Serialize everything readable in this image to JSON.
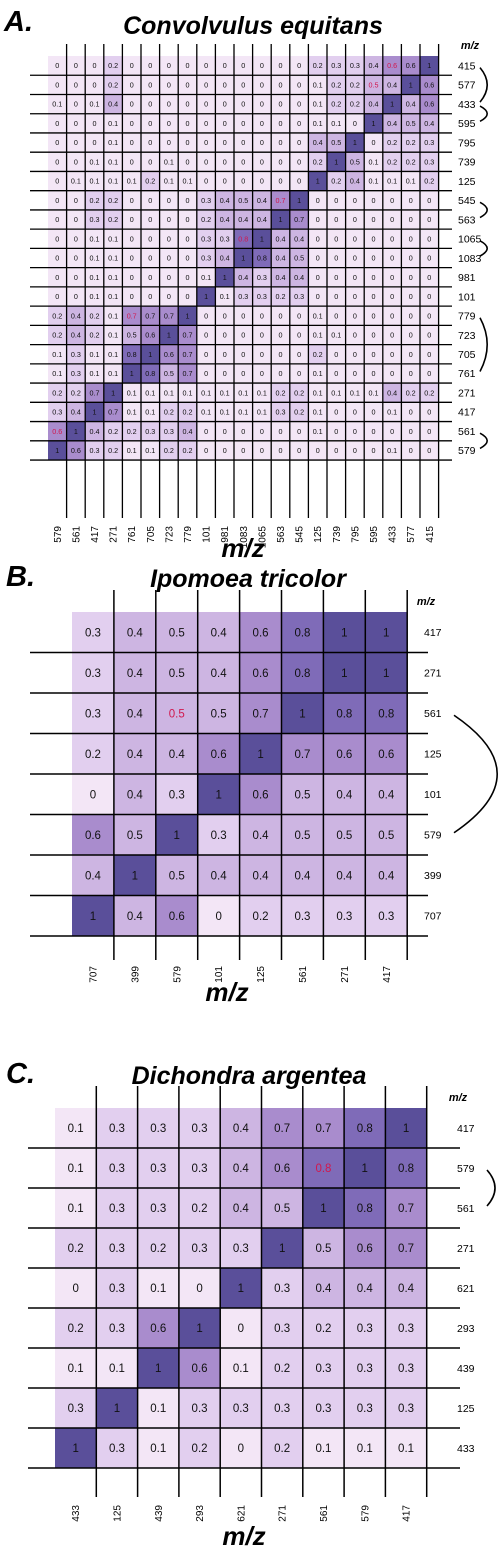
{
  "colors": {
    "scale": [
      "#f3e6f6",
      "#e2cfef",
      "#cdb5e2",
      "#a98ccd",
      "#7f6bb8",
      "#5a4f9a"
    ],
    "highlight_text": "#d1184e",
    "normal_text": "#111111",
    "grid": "#000000"
  },
  "chart_data": [
    {
      "type": "heatmap",
      "panel": "A.",
      "title": "Convolvulus equitans",
      "xlabel": "m/z",
      "row_header": "m/z",
      "x_labels": [
        "579",
        "561",
        "417",
        "271",
        "761",
        "705",
        "723",
        "779",
        "101",
        "981",
        "1083",
        "1065",
        "563",
        "545",
        "125",
        "739",
        "795",
        "595",
        "433",
        "577",
        "415"
      ],
      "y_labels": [
        "415",
        "577",
        "433",
        "595",
        "795",
        "739",
        "125",
        "545",
        "563",
        "1065",
        "1083",
        "981",
        "101",
        "779",
        "723",
        "705",
        "761",
        "271",
        "417",
        "561",
        "579"
      ],
      "brackets": [
        [
          0,
          2
        ],
        [
          2,
          3
        ],
        [
          7,
          8
        ],
        [
          9,
          10
        ],
        [
          13,
          16
        ],
        [
          19,
          20
        ]
      ],
      "values": [
        [
          "0",
          "0",
          "0",
          "0.2",
          "0",
          "0",
          "0",
          "0",
          "0",
          "0",
          "0",
          "0",
          "0",
          "0",
          "0.2",
          "0.3",
          "0.3",
          "0.4",
          "0.6",
          "0.6",
          "1"
        ],
        [
          "0",
          "0",
          "0",
          "0.2",
          "0",
          "0",
          "0",
          "0",
          "0",
          "0",
          "0",
          "0",
          "0",
          "0",
          "0.1",
          "0.2",
          "0.2",
          "0.5",
          "0.4",
          "1",
          "0.6"
        ],
        [
          "0.1",
          "0",
          "0.1",
          "0.4",
          "0",
          "0",
          "0",
          "0",
          "0",
          "0",
          "0",
          "0",
          "0",
          "0",
          "0.1",
          "0.2",
          "0.2",
          "0.4",
          "1",
          "0.4",
          "0.6"
        ],
        [
          "0",
          "0",
          "0",
          "0.1",
          "0",
          "0",
          "0",
          "0",
          "0",
          "0",
          "0",
          "0",
          "0",
          "0",
          "0.1",
          "0.1",
          "0",
          "1",
          "0.4",
          "0.5",
          "0.4"
        ],
        [
          "0",
          "0",
          "0",
          "0.1",
          "0",
          "0",
          "0",
          "0",
          "0",
          "0",
          "0",
          "0",
          "0",
          "0",
          "0.4",
          "0.5",
          "1",
          "0",
          "0.2",
          "0.2",
          "0.3"
        ],
        [
          "0",
          "0",
          "0.1",
          "0.1",
          "0",
          "0",
          "0.1",
          "0",
          "0",
          "0",
          "0",
          "0",
          "0",
          "0",
          "0.2",
          "1",
          "0.5",
          "0.1",
          "0.2",
          "0.2",
          "0.3"
        ],
        [
          "0",
          "0.1",
          "0.1",
          "0.1",
          "0.1",
          "0.2",
          "0.1",
          "0.1",
          "0",
          "0",
          "0",
          "0",
          "0",
          "0",
          "1",
          "0.2",
          "0.4",
          "0.1",
          "0.1",
          "0.1",
          "0.2"
        ],
        [
          "0",
          "0",
          "0.2",
          "0.2",
          "0",
          "0",
          "0",
          "0",
          "0.3",
          "0.4",
          "0.5",
          "0.4",
          "0.7",
          "1",
          "0",
          "0",
          "0",
          "0",
          "0",
          "0",
          "0"
        ],
        [
          "0",
          "0",
          "0.3",
          "0.2",
          "0",
          "0",
          "0",
          "0",
          "0.2",
          "0.4",
          "0.4",
          "0.4",
          "1",
          "0.7",
          "0",
          "0",
          "0",
          "0",
          "0",
          "0",
          "0"
        ],
        [
          "0",
          "0",
          "0.1",
          "0.1",
          "0",
          "0",
          "0",
          "0",
          "0.3",
          "0.3",
          "0.8",
          "1",
          "0.4",
          "0.4",
          "0",
          "0",
          "0",
          "0",
          "0",
          "0",
          "0"
        ],
        [
          "0",
          "0",
          "0.1",
          "0.1",
          "0",
          "0",
          "0",
          "0",
          "0.3",
          "0.4",
          "1",
          "0.8",
          "0.4",
          "0.5",
          "0",
          "0",
          "0",
          "0",
          "0",
          "0",
          "0"
        ],
        [
          "0",
          "0",
          "0.1",
          "0.1",
          "0",
          "0",
          "0",
          "0",
          "0.1",
          "1",
          "0.4",
          "0.3",
          "0.4",
          "0.4",
          "0",
          "0",
          "0",
          "0",
          "0",
          "0",
          "0"
        ],
        [
          "0",
          "0",
          "0.1",
          "0.1",
          "0",
          "0",
          "0",
          "0",
          "1",
          "0.1",
          "0.3",
          "0.3",
          "0.2",
          "0.3",
          "0",
          "0",
          "0",
          "0",
          "0",
          "0",
          "0"
        ],
        [
          "0.2",
          "0.4",
          "0.2",
          "0.1",
          "0.7",
          "0.7",
          "0.7",
          "1",
          "0",
          "0",
          "0",
          "0",
          "0",
          "0",
          "0.1",
          "0",
          "0",
          "0",
          "0",
          "0",
          "0"
        ],
        [
          "0.2",
          "0.4",
          "0.2",
          "0.1",
          "0.5",
          "0.6",
          "1",
          "0.7",
          "0",
          "0",
          "0",
          "0",
          "0",
          "0",
          "0.1",
          "0.1",
          "0",
          "0",
          "0",
          "0",
          "0"
        ],
        [
          "0.1",
          "0.3",
          "0.1",
          "0.1",
          "0.8",
          "1",
          "0.6",
          "0.7",
          "0",
          "0",
          "0",
          "0",
          "0",
          "0",
          "0.2",
          "0",
          "0",
          "0",
          "0",
          "0",
          "0"
        ],
        [
          "0.1",
          "0.3",
          "0.1",
          "0.1",
          "1",
          "0.8",
          "0.5",
          "0.7",
          "0",
          "0",
          "0",
          "0",
          "0",
          "0",
          "0.1",
          "0",
          "0",
          "0",
          "0",
          "0",
          "0"
        ],
        [
          "0.2",
          "0.2",
          "0.7",
          "1",
          "0.1",
          "0.1",
          "0.1",
          "0.1",
          "0.1",
          "0.1",
          "0.1",
          "0.1",
          "0.2",
          "0.2",
          "0.1",
          "0.1",
          "0.1",
          "0.1",
          "0.4",
          "0.2",
          "0.2"
        ],
        [
          "0.3",
          "0.4",
          "1",
          "0.7",
          "0.1",
          "0.1",
          "0.2",
          "0.2",
          "0.1",
          "0.1",
          "0.1",
          "0.1",
          "0.3",
          "0.2",
          "0.1",
          "0",
          "0",
          "0",
          "0.1",
          "0",
          "0"
        ],
        [
          "0.6",
          "1",
          "0.4",
          "0.2",
          "0.2",
          "0.3",
          "0.3",
          "0.4",
          "0",
          "0",
          "0",
          "0",
          "0",
          "0",
          "0.1",
          "0",
          "0",
          "0",
          "0",
          "0",
          "0"
        ],
        [
          "1",
          "0.6",
          "0.3",
          "0.2",
          "0.1",
          "0.1",
          "0.2",
          "0.2",
          "0",
          "0",
          "0",
          "0",
          "0",
          "0",
          "0",
          "0",
          "0",
          "0",
          "0.1",
          "0",
          "0"
        ]
      ],
      "highlighted": [
        [
          0,
          18
        ],
        [
          1,
          17
        ],
        [
          7,
          12
        ],
        [
          9,
          10
        ],
        [
          13,
          4
        ],
        [
          19,
          0
        ]
      ]
    },
    {
      "type": "heatmap",
      "panel": "B.",
      "title": "Ipomoea tricolor",
      "xlabel": "m/z",
      "row_header": "m/z",
      "x_labels": [
        "707",
        "399",
        "579",
        "101",
        "125",
        "561",
        "271",
        "417"
      ],
      "y_labels": [
        "417",
        "271",
        "561",
        "125",
        "101",
        "579",
        "399",
        "707"
      ],
      "brackets": [
        [
          2,
          5
        ]
      ],
      "values": [
        [
          "0.3",
          "0.4",
          "0.5",
          "0.4",
          "0.6",
          "0.8",
          "1",
          "1"
        ],
        [
          "0.3",
          "0.4",
          "0.5",
          "0.4",
          "0.6",
          "0.8",
          "1",
          "1"
        ],
        [
          "0.3",
          "0.4",
          "0.5",
          "0.5",
          "0.7",
          "1",
          "0.8",
          "0.8"
        ],
        [
          "0.2",
          "0.4",
          "0.4",
          "0.6",
          "1",
          "0.7",
          "0.6",
          "0.6"
        ],
        [
          "0",
          "0.4",
          "0.3",
          "1",
          "0.6",
          "0.5",
          "0.4",
          "0.4"
        ],
        [
          "0.6",
          "0.5",
          "1",
          "0.3",
          "0.4",
          "0.5",
          "0.5",
          "0.5"
        ],
        [
          "0.4",
          "1",
          "0.5",
          "0.4",
          "0.4",
          "0.4",
          "0.4",
          "0.4"
        ],
        [
          "1",
          "0.4",
          "0.6",
          "0",
          "0.2",
          "0.3",
          "0.3",
          "0.3"
        ]
      ],
      "highlighted": [
        [
          2,
          2
        ]
      ]
    },
    {
      "type": "heatmap",
      "panel": "C.",
      "title": "Dichondra argentea",
      "xlabel": "m/z",
      "row_header": "m/z",
      "x_labels": [
        "433",
        "125",
        "439",
        "293",
        "621",
        "271",
        "561",
        "579",
        "417"
      ],
      "y_labels": [
        "417",
        "579",
        "561",
        "271",
        "621",
        "293",
        "439",
        "125",
        "433"
      ],
      "brackets": [
        [
          1,
          2
        ]
      ],
      "values": [
        [
          "0.1",
          "0.3",
          "0.3",
          "0.3",
          "0.4",
          "0.7",
          "0.7",
          "0.8",
          "1"
        ],
        [
          "0.1",
          "0.3",
          "0.3",
          "0.3",
          "0.4",
          "0.6",
          "0.8",
          "1",
          "0.8"
        ],
        [
          "0.1",
          "0.3",
          "0.3",
          "0.2",
          "0.4",
          "0.5",
          "1",
          "0.8",
          "0.7"
        ],
        [
          "0.2",
          "0.3",
          "0.2",
          "0.3",
          "0.3",
          "1",
          "0.5",
          "0.6",
          "0.7"
        ],
        [
          "0",
          "0.3",
          "0.1",
          "0",
          "1",
          "0.3",
          "0.4",
          "0.4",
          "0.4"
        ],
        [
          "0.2",
          "0.3",
          "0.6",
          "1",
          "0",
          "0.3",
          "0.2",
          "0.3",
          "0.3"
        ],
        [
          "0.1",
          "0.1",
          "1",
          "0.6",
          "0.1",
          "0.2",
          "0.3",
          "0.3",
          "0.3"
        ],
        [
          "0.3",
          "1",
          "0.1",
          "0.3",
          "0.3",
          "0.3",
          "0.3",
          "0.3",
          "0.3"
        ],
        [
          "1",
          "0.3",
          "0.1",
          "0.2",
          "0",
          "0.2",
          "0.1",
          "0.1",
          "0.1"
        ]
      ],
      "highlighted": [
        [
          1,
          6
        ]
      ]
    }
  ]
}
